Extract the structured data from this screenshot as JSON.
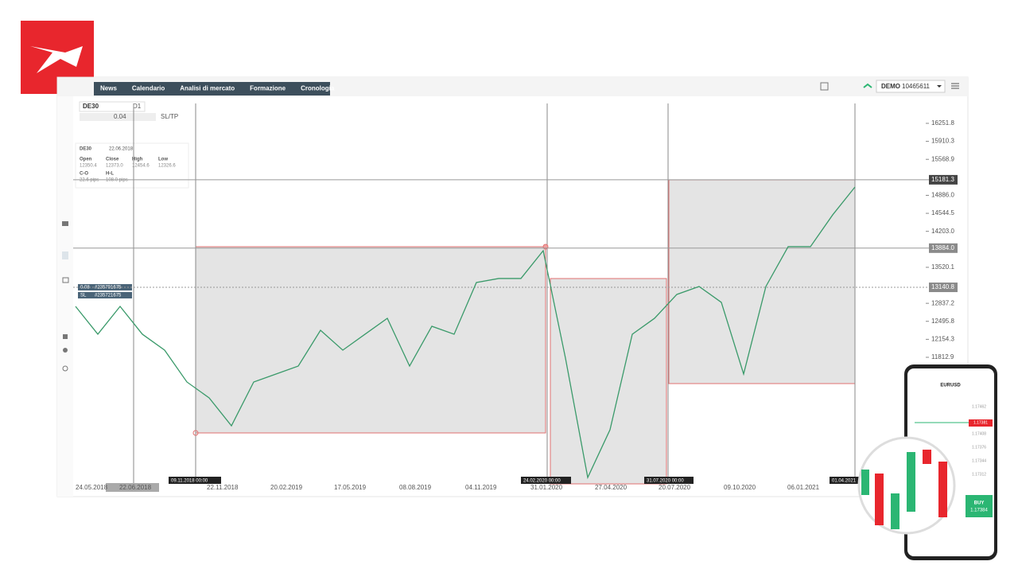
{
  "menu": [
    "News",
    "Calendario",
    "Analisi di mercato",
    "Formazione",
    "Cronologia"
  ],
  "account": {
    "mode": "DEMO",
    "number": "10465611"
  },
  "toolbar": {
    "symbol": "DE30",
    "interval": "D1",
    "volume": "0.04",
    "sltp": "SL/TP"
  },
  "info_box": {
    "symbol": "DE30",
    "date": "22.06.2018",
    "fields": [
      {
        "label": "Open",
        "value": "12350.4"
      },
      {
        "label": "Close",
        "value": "12373.0"
      },
      {
        "label": "High",
        "value": "12454.6"
      },
      {
        "label": "Low",
        "value": "12326.6"
      },
      {
        "label": "C-O",
        "value": "22.6 pips"
      },
      {
        "label": "H-L",
        "value": "108.0 pips"
      }
    ]
  },
  "orders": [
    {
      "label": "0.08",
      "id": "#235791675"
    },
    {
      "label": "SL",
      "id": "#235721675"
    }
  ],
  "chart_data": {
    "type": "line",
    "color": "#3a9a6a",
    "values": [
      12779,
      12251,
      12779,
      12251,
      11949,
      11345,
      11043,
      10514,
      11345,
      11496,
      11647,
      12326,
      11949,
      12251,
      12553,
      11647,
      12402,
      12251,
      13232,
      13308,
      13308,
      13836,
      11798,
      9533,
      10439,
      12251,
      12553,
      13006,
      13157,
      12855,
      11496,
      13157,
      13912,
      13912,
      14516,
      15044
    ],
    "ylim": [
      9412,
      16780
    ],
    "yticks": [
      16251.8,
      15910.3,
      15568.9,
      {
        "value": 14886,
        "label": "14886.0"
      },
      14544.5,
      {
        "value": 14203,
        "label": "14203.0"
      },
      13520.1,
      12837.2,
      12495.8,
      12154.3,
      11812.9
    ],
    "price_badges": [
      15181.3,
      {
        "value": 13884,
        "label": "13884.0"
      },
      13140.8
    ],
    "x_labels": [
      "24.05.2018",
      "22.06.2018",
      "22.11.2018",
      "20.02.2019",
      "17.05.2019",
      "08.08.2019",
      "04.11.2019",
      "31.01.2020",
      "27.04.2020",
      "20.07.2020",
      "09.10.2020",
      "06.01.2021"
    ],
    "date_markers": [
      "09.11.2018 00:00",
      "24.02.2020 00:00",
      "31.07.2020 00:00",
      "01.04.2021"
    ]
  },
  "phone": {
    "symbol": "EURUSD",
    "price": "1.17381",
    "buy_label": "BUY",
    "buy_price": "1.17384",
    "ticks": [
      "1.17462",
      "1.17408",
      "1.17376",
      "1.17344",
      "1.17312"
    ]
  }
}
